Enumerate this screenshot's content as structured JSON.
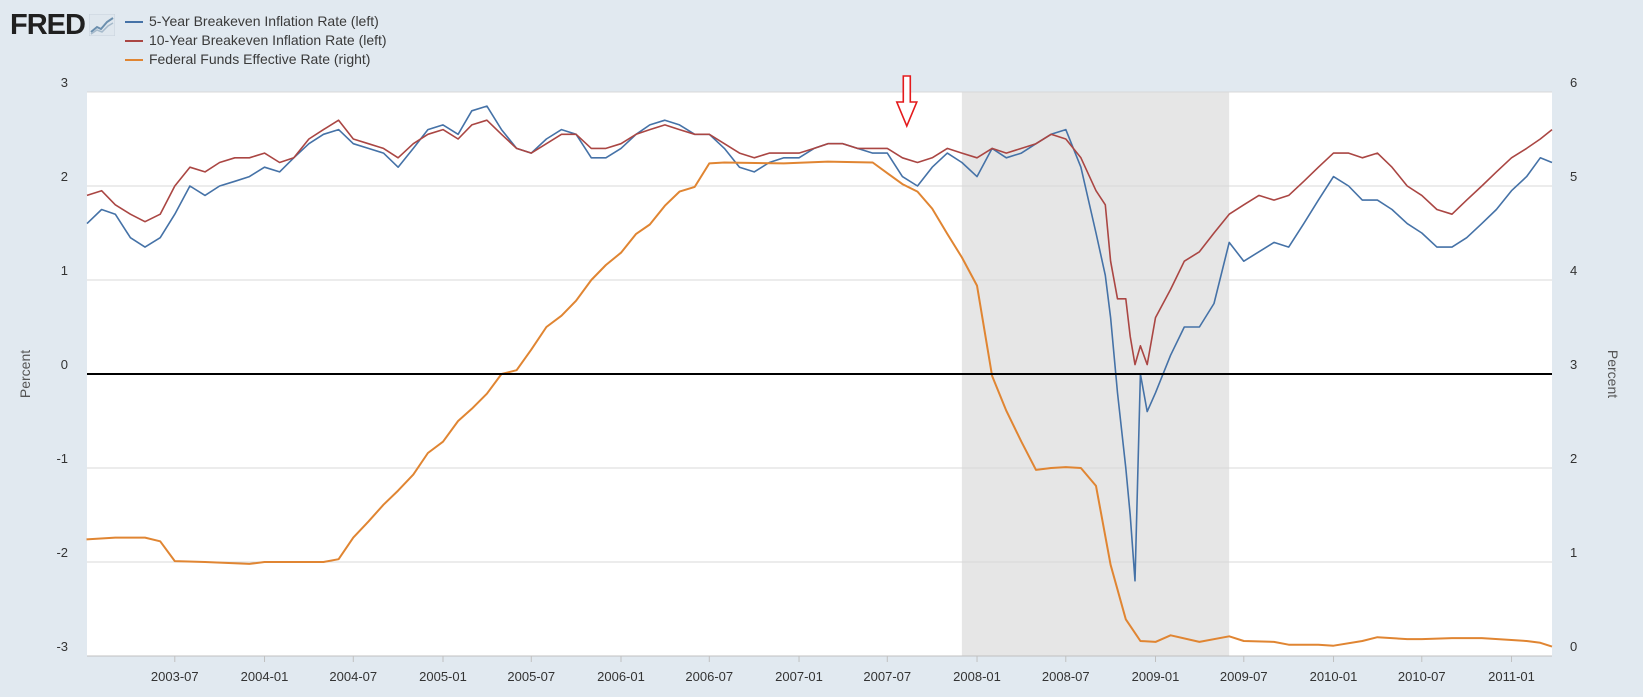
{
  "header": {
    "logo_text": "FRED",
    "logo_icon": "chart-line-icon"
  },
  "chart_data": {
    "type": "line",
    "title": "",
    "xlabel": "",
    "ylabel_left": "Percent",
    "ylabel_right": "Percent",
    "ylim_left": [
      -3,
      3
    ],
    "ylim_right": [
      0,
      6
    ],
    "xlim": [
      "2003-01-02",
      "2011-03-25"
    ],
    "yticks_left": [
      "3",
      "2",
      "1",
      "0",
      "-1",
      "-2",
      "-3"
    ],
    "yticks_right": [
      "6",
      "5",
      "4",
      "3",
      "2",
      "1",
      "0"
    ],
    "xticks": [
      "2003-07",
      "2004-01",
      "2004-07",
      "2005-01",
      "2005-07",
      "2006-01",
      "2006-07",
      "2007-01",
      "2007-07",
      "2008-01",
      "2008-07",
      "2009-01",
      "2009-07",
      "2010-01",
      "2010-07",
      "2011-01"
    ],
    "grid": "horizontal",
    "legend_position": "top-left",
    "background": "#e1e9f0",
    "plot_background": "#ffffff",
    "recession_shading": {
      "start": "2007-12-01",
      "end": "2009-06-01",
      "color": "#e6e6e6"
    },
    "reference_line": {
      "axis": "left",
      "y": 0,
      "color": "#000000"
    },
    "annotation": {
      "type": "down-arrow",
      "x": "2007-08-10",
      "color": "#e41a1c"
    },
    "series": [
      {
        "name": "5-Year Breakeven Inflation Rate (left)",
        "axis": "left",
        "color": "#4572a7",
        "x": [
          "2003-01-02",
          "2003-02-01",
          "2003-03-01",
          "2003-04-01",
          "2003-05-01",
          "2003-06-01",
          "2003-07-01",
          "2003-08-01",
          "2003-09-01",
          "2003-10-01",
          "2003-11-01",
          "2003-12-01",
          "2004-01-01",
          "2004-02-01",
          "2004-03-01",
          "2004-04-01",
          "2004-05-01",
          "2004-06-01",
          "2004-07-01",
          "2004-08-01",
          "2004-09-01",
          "2004-10-01",
          "2004-11-01",
          "2004-12-01",
          "2005-01-01",
          "2005-02-01",
          "2005-03-01",
          "2005-04-01",
          "2005-05-01",
          "2005-06-01",
          "2005-07-01",
          "2005-08-01",
          "2005-09-01",
          "2005-10-01",
          "2005-11-01",
          "2005-12-01",
          "2006-01-01",
          "2006-02-01",
          "2006-03-01",
          "2006-04-01",
          "2006-05-01",
          "2006-06-01",
          "2006-07-01",
          "2006-08-01",
          "2006-09-01",
          "2006-10-01",
          "2006-11-01",
          "2006-12-01",
          "2007-01-01",
          "2007-02-01",
          "2007-03-01",
          "2007-04-01",
          "2007-05-01",
          "2007-06-01",
          "2007-07-01",
          "2007-08-01",
          "2007-09-01",
          "2007-10-01",
          "2007-11-01",
          "2007-12-01",
          "2008-01-01",
          "2008-02-01",
          "2008-03-01",
          "2008-04-01",
          "2008-05-01",
          "2008-06-01",
          "2008-07-01",
          "2008-08-01",
          "2008-09-01",
          "2008-09-20",
          "2008-10-01",
          "2008-10-15",
          "2008-11-01",
          "2008-11-10",
          "2008-11-20",
          "2008-12-01",
          "2008-12-15",
          "2009-01-01",
          "2009-02-01",
          "2009-03-01",
          "2009-04-01",
          "2009-05-01",
          "2009-06-01",
          "2009-07-01",
          "2009-08-01",
          "2009-09-01",
          "2009-10-01",
          "2009-11-01",
          "2009-12-01",
          "2010-01-01",
          "2010-02-01",
          "2010-03-01",
          "2010-04-01",
          "2010-05-01",
          "2010-06-01",
          "2010-07-01",
          "2010-08-01",
          "2010-09-01",
          "2010-10-01",
          "2010-11-01",
          "2010-12-01",
          "2011-01-01",
          "2011-02-01",
          "2011-03-01",
          "2011-03-25"
        ],
        "values": [
          1.6,
          1.75,
          1.7,
          1.45,
          1.35,
          1.45,
          1.7,
          2.0,
          1.9,
          2.0,
          2.05,
          2.1,
          2.2,
          2.15,
          2.3,
          2.45,
          2.55,
          2.6,
          2.45,
          2.4,
          2.35,
          2.2,
          2.4,
          2.6,
          2.65,
          2.55,
          2.8,
          2.85,
          2.6,
          2.4,
          2.35,
          2.5,
          2.6,
          2.55,
          2.3,
          2.3,
          2.4,
          2.55,
          2.65,
          2.7,
          2.65,
          2.55,
          2.55,
          2.4,
          2.2,
          2.15,
          2.25,
          2.3,
          2.3,
          2.4,
          2.45,
          2.45,
          2.4,
          2.35,
          2.35,
          2.1,
          2.0,
          2.2,
          2.35,
          2.25,
          2.1,
          2.4,
          2.3,
          2.35,
          2.45,
          2.55,
          2.6,
          2.2,
          1.5,
          1.05,
          0.6,
          -0.2,
          -1.0,
          -1.5,
          -2.2,
          0.0,
          -0.4,
          -0.2,
          0.2,
          0.5,
          0.5,
          0.75,
          1.4,
          1.2,
          1.3,
          1.4,
          1.35,
          1.6,
          1.85,
          2.1,
          2.0,
          1.85,
          1.85,
          1.75,
          1.6,
          1.5,
          1.35,
          1.35,
          1.45,
          1.6,
          1.75,
          1.95,
          2.1,
          2.3,
          2.25
        ]
      },
      {
        "name": "10-Year Breakeven Inflation Rate (left)",
        "axis": "left",
        "color": "#aa4643",
        "x": [
          "2003-01-02",
          "2003-02-01",
          "2003-03-01",
          "2003-04-01",
          "2003-05-01",
          "2003-06-01",
          "2003-07-01",
          "2003-08-01",
          "2003-09-01",
          "2003-10-01",
          "2003-11-01",
          "2003-12-01",
          "2004-01-01",
          "2004-02-01",
          "2004-03-01",
          "2004-04-01",
          "2004-05-01",
          "2004-06-01",
          "2004-07-01",
          "2004-08-01",
          "2004-09-01",
          "2004-10-01",
          "2004-11-01",
          "2004-12-01",
          "2005-01-01",
          "2005-02-01",
          "2005-03-01",
          "2005-04-01",
          "2005-05-01",
          "2005-06-01",
          "2005-07-01",
          "2005-08-01",
          "2005-09-01",
          "2005-10-01",
          "2005-11-01",
          "2005-12-01",
          "2006-01-01",
          "2006-02-01",
          "2006-03-01",
          "2006-04-01",
          "2006-05-01",
          "2006-06-01",
          "2006-07-01",
          "2006-08-01",
          "2006-09-01",
          "2006-10-01",
          "2006-11-01",
          "2006-12-01",
          "2007-01-01",
          "2007-02-01",
          "2007-03-01",
          "2007-04-01",
          "2007-05-01",
          "2007-06-01",
          "2007-07-01",
          "2007-08-01",
          "2007-09-01",
          "2007-10-01",
          "2007-11-01",
          "2007-12-01",
          "2008-01-01",
          "2008-02-01",
          "2008-03-01",
          "2008-04-01",
          "2008-05-01",
          "2008-06-01",
          "2008-07-01",
          "2008-08-01",
          "2008-09-01",
          "2008-09-20",
          "2008-10-01",
          "2008-10-15",
          "2008-11-01",
          "2008-11-10",
          "2008-11-20",
          "2008-12-01",
          "2008-12-15",
          "2009-01-01",
          "2009-02-01",
          "2009-03-01",
          "2009-04-01",
          "2009-05-01",
          "2009-06-01",
          "2009-07-01",
          "2009-08-01",
          "2009-09-01",
          "2009-10-01",
          "2009-11-01",
          "2009-12-01",
          "2010-01-01",
          "2010-02-01",
          "2010-03-01",
          "2010-04-01",
          "2010-05-01",
          "2010-06-01",
          "2010-07-01",
          "2010-08-01",
          "2010-09-01",
          "2010-10-01",
          "2010-11-01",
          "2010-12-01",
          "2011-01-01",
          "2011-02-01",
          "2011-03-01",
          "2011-03-25"
        ],
        "values": [
          1.9,
          1.95,
          1.8,
          1.7,
          1.62,
          1.7,
          2.0,
          2.2,
          2.15,
          2.25,
          2.3,
          2.3,
          2.35,
          2.25,
          2.3,
          2.5,
          2.6,
          2.7,
          2.5,
          2.45,
          2.4,
          2.3,
          2.45,
          2.55,
          2.6,
          2.5,
          2.65,
          2.7,
          2.55,
          2.4,
          2.35,
          2.45,
          2.55,
          2.55,
          2.4,
          2.4,
          2.45,
          2.55,
          2.6,
          2.65,
          2.6,
          2.55,
          2.55,
          2.45,
          2.35,
          2.3,
          2.35,
          2.35,
          2.35,
          2.4,
          2.45,
          2.45,
          2.4,
          2.4,
          2.4,
          2.3,
          2.25,
          2.3,
          2.4,
          2.35,
          2.3,
          2.4,
          2.35,
          2.4,
          2.45,
          2.55,
          2.5,
          2.3,
          1.95,
          1.8,
          1.2,
          0.8,
          0.8,
          0.4,
          0.1,
          0.3,
          0.1,
          0.6,
          0.9,
          1.2,
          1.3,
          1.5,
          1.7,
          1.8,
          1.9,
          1.85,
          1.9,
          2.05,
          2.2,
          2.35,
          2.35,
          2.3,
          2.35,
          2.2,
          2.0,
          1.9,
          1.75,
          1.7,
          1.85,
          2.0,
          2.15,
          2.3,
          2.4,
          2.5,
          2.6
        ]
      },
      {
        "name": "Federal Funds Effective Rate (right)",
        "axis": "right",
        "color": "#e08532",
        "x": [
          "2003-01-01",
          "2003-03-01",
          "2003-05-01",
          "2003-06-01",
          "2003-07-01",
          "2003-09-01",
          "2003-12-01",
          "2004-01-01",
          "2004-03-01",
          "2004-05-01",
          "2004-06-01",
          "2004-07-01",
          "2004-08-01",
          "2004-09-01",
          "2004-10-01",
          "2004-11-01",
          "2004-12-01",
          "2005-01-01",
          "2005-02-01",
          "2005-03-01",
          "2005-04-01",
          "2005-05-01",
          "2005-06-01",
          "2005-07-01",
          "2005-08-01",
          "2005-09-01",
          "2005-10-01",
          "2005-11-01",
          "2005-12-01",
          "2006-01-01",
          "2006-02-01",
          "2006-03-01",
          "2006-04-01",
          "2006-05-01",
          "2006-06-01",
          "2006-07-01",
          "2006-08-01",
          "2006-12-01",
          "2007-03-01",
          "2007-06-01",
          "2007-08-01",
          "2007-09-01",
          "2007-10-01",
          "2007-11-01",
          "2007-12-01",
          "2008-01-01",
          "2008-02-01",
          "2008-03-01",
          "2008-04-01",
          "2008-05-01",
          "2008-06-01",
          "2008-07-01",
          "2008-08-01",
          "2008-09-01",
          "2008-10-01",
          "2008-11-01",
          "2008-12-01",
          "2009-01-01",
          "2009-02-01",
          "2009-04-01",
          "2009-06-01",
          "2009-07-01",
          "2009-09-01",
          "2009-10-01",
          "2009-12-01",
          "2010-01-01",
          "2010-03-01",
          "2010-04-01",
          "2010-06-01",
          "2010-07-01",
          "2010-09-01",
          "2010-11-01",
          "2011-01-01",
          "2011-02-01",
          "2011-03-01",
          "2011-03-25"
        ],
        "values": [
          1.24,
          1.26,
          1.26,
          1.22,
          1.01,
          1.0,
          0.98,
          1.0,
          1.0,
          1.0,
          1.03,
          1.26,
          1.43,
          1.61,
          1.76,
          1.93,
          2.16,
          2.28,
          2.5,
          2.63,
          2.79,
          3.0,
          3.04,
          3.26,
          3.5,
          3.62,
          3.78,
          4.0,
          4.16,
          4.29,
          4.49,
          4.59,
          4.79,
          4.94,
          4.99,
          5.24,
          5.25,
          5.24,
          5.26,
          5.25,
          5.02,
          4.94,
          4.76,
          4.49,
          4.24,
          3.94,
          2.98,
          2.61,
          2.28,
          1.98,
          2.0,
          2.01,
          2.0,
          1.81,
          0.97,
          0.39,
          0.16,
          0.15,
          0.22,
          0.15,
          0.21,
          0.16,
          0.15,
          0.12,
          0.12,
          0.11,
          0.16,
          0.2,
          0.18,
          0.18,
          0.19,
          0.19,
          0.17,
          0.16,
          0.14,
          0.1
        ]
      }
    ]
  }
}
